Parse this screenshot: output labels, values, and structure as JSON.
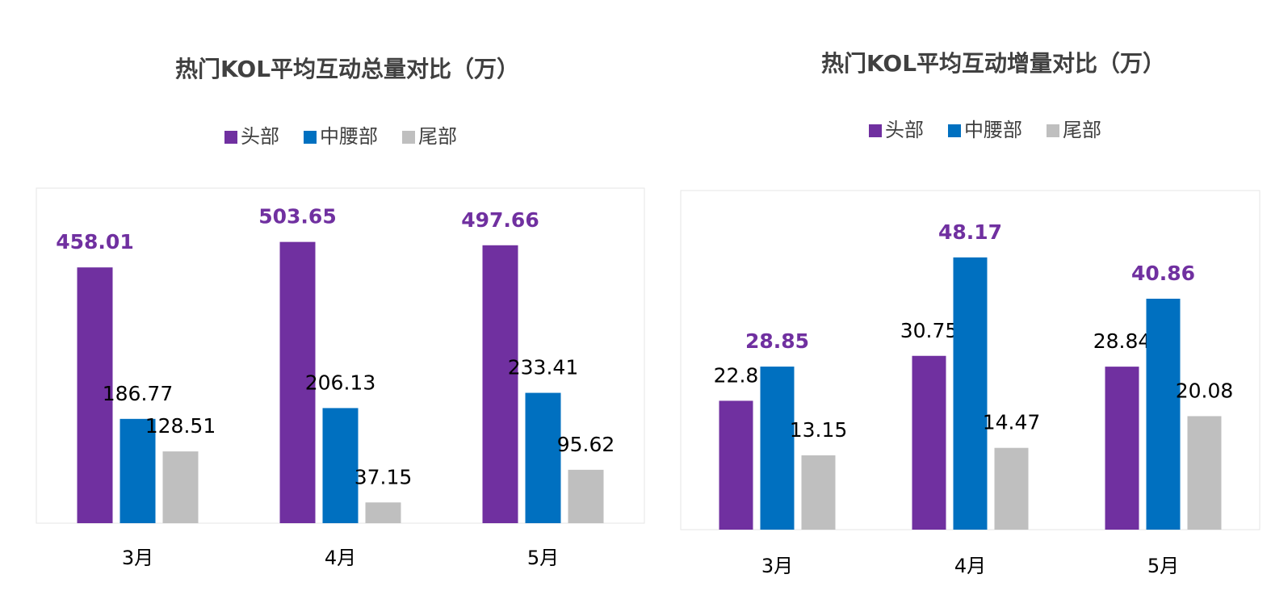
{
  "chart_data": [
    {
      "type": "bar",
      "title": "热门KOL平均互动总量对比（万）",
      "categories": [
        "3月",
        "4月",
        "5月"
      ],
      "series": [
        {
          "name": "头部",
          "color": "#7030a0",
          "label_color": "#7030a0",
          "label_bold": true,
          "values": [
            458.01,
            503.65,
            497.66
          ]
        },
        {
          "name": "中腰部",
          "color": "#0070c0",
          "label_color": "#000000",
          "label_bold": false,
          "values": [
            186.77,
            206.13,
            233.41
          ]
        },
        {
          "name": "尾部",
          "color": "#bfbfbf",
          "label_color": "#000000",
          "label_bold": false,
          "values": [
            128.51,
            37.15,
            95.62
          ]
        }
      ],
      "ylim": [
        0,
        600
      ],
      "legend": "top"
    },
    {
      "type": "bar",
      "title": "热门KOL平均互动增量对比（万）",
      "categories": [
        "3月",
        "4月",
        "5月"
      ],
      "series": [
        {
          "name": "头部",
          "color": "#7030a0",
          "label_color": "#000000",
          "label_bold": false,
          "values": [
            22.8,
            30.75,
            28.84
          ]
        },
        {
          "name": "中腰部",
          "color": "#0070c0",
          "label_color": "#7030a0",
          "label_bold": true,
          "values": [
            28.85,
            48.17,
            40.86
          ]
        },
        {
          "name": "尾部",
          "color": "#bfbfbf",
          "label_color": "#000000",
          "label_bold": false,
          "values": [
            13.15,
            14.47,
            20.08
          ]
        }
      ],
      "ylim": [
        0,
        60
      ],
      "legend": "top"
    }
  ]
}
